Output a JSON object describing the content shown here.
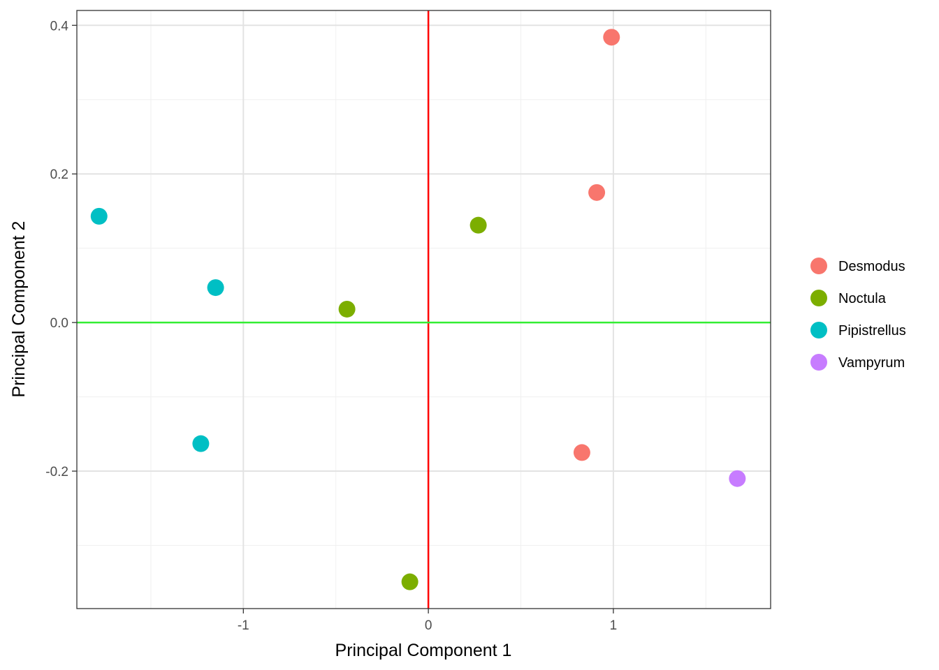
{
  "chart_data": {
    "type": "scatter",
    "title": "",
    "xlabel": "Principal Component 1",
    "ylabel": "Principal Component 2",
    "xlim": [
      -1.9,
      1.85
    ],
    "ylim": [
      -0.385,
      0.42
    ],
    "x_ticks": [
      -1,
      0,
      1
    ],
    "x_tick_labels": [
      "-1",
      "0",
      "1"
    ],
    "y_ticks": [
      -0.2,
      0.0,
      0.2,
      0.4
    ],
    "y_tick_labels": [
      "-0.2",
      "0.0",
      "0.2",
      "0.4"
    ],
    "grid": true,
    "reference_lines": [
      {
        "axis": "x",
        "value": 0,
        "color": "#ff0000"
      },
      {
        "axis": "y",
        "value": 0,
        "color": "#33ee33"
      }
    ],
    "legend_position": "right",
    "series": [
      {
        "name": "Desmodus",
        "color": "#F8766D",
        "points": [
          [
            0.99,
            0.384
          ],
          [
            0.91,
            0.175
          ],
          [
            0.83,
            -0.175
          ]
        ]
      },
      {
        "name": "Noctula",
        "color": "#7CAE00",
        "points": [
          [
            0.27,
            0.131
          ],
          [
            -0.44,
            0.018
          ],
          [
            -0.1,
            -0.349
          ]
        ]
      },
      {
        "name": "Pipistrellus",
        "color": "#00BFC4",
        "points": [
          [
            -1.78,
            0.143
          ],
          [
            -1.15,
            0.047
          ],
          [
            -1.23,
            -0.163
          ]
        ]
      },
      {
        "name": "Vampyrum",
        "color": "#C77CFF",
        "points": [
          [
            1.67,
            -0.21
          ]
        ]
      }
    ]
  }
}
